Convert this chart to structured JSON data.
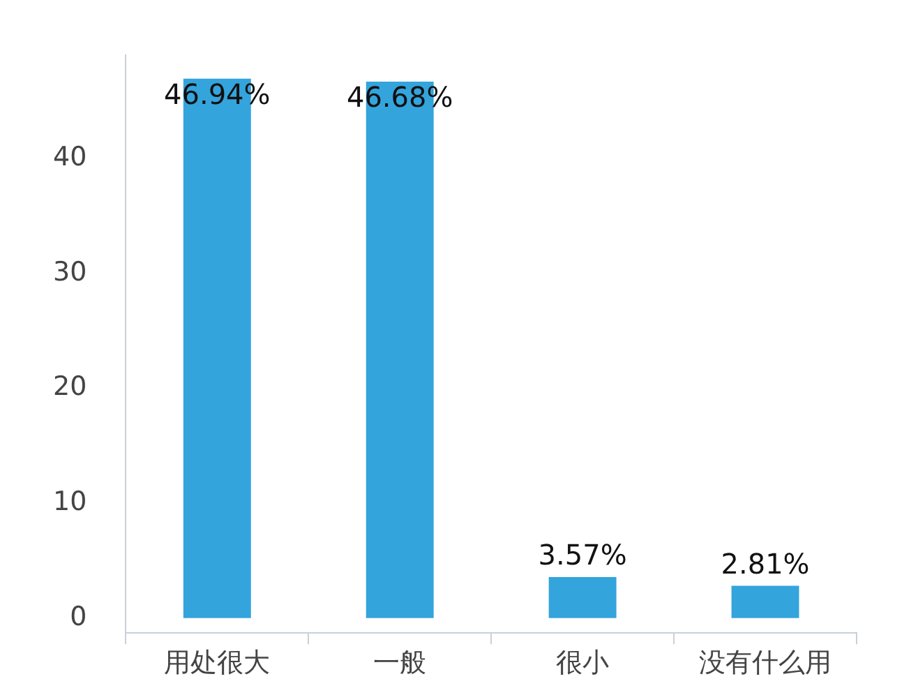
{
  "chart_data": {
    "type": "bar",
    "categories": [
      "用处很大",
      "一般",
      "很小",
      "没有什么用"
    ],
    "values": [
      46.94,
      46.68,
      3.57,
      2.81
    ],
    "color": "#34a4dc",
    "value_labels": [
      "46.94%",
      "46.68%",
      "3.57%",
      "2.81%"
    ],
    "ylim": [
      -1.3,
      49
    ],
    "yticks": [
      0,
      10,
      20,
      30,
      40
    ],
    "grid": false,
    "legend": false
  }
}
